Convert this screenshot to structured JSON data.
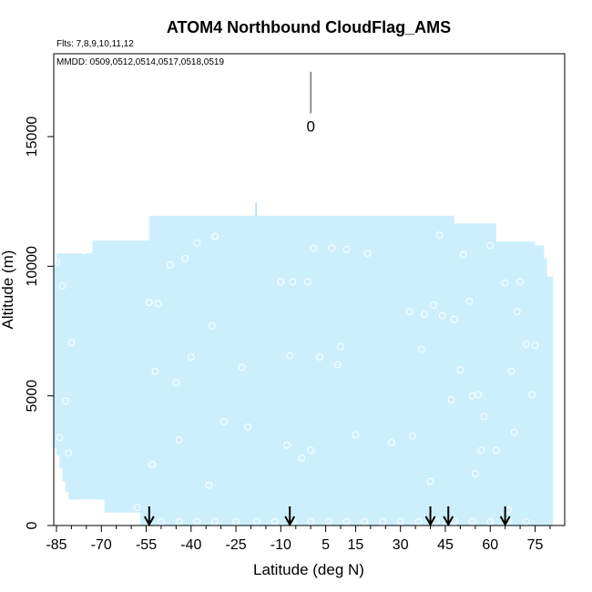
{
  "chart_data": {
    "type": "area",
    "title": "ATOM4 Northbound CloudFlag_AMS",
    "flights_text": "Flts: 7,8,9,10,11,12",
    "dates_text": "MMDD: 0509,0512,0514,0517,0518,0519",
    "xlabel": "Latitude (deg N)",
    "ylabel": "Altitude (m)",
    "xlim": [
      -86,
      81
    ],
    "ylim": [
      0,
      18000
    ],
    "x_ticks": [
      -85,
      -70,
      -55,
      -40,
      -25,
      -10,
      5,
      15,
      30,
      45,
      60,
      75
    ],
    "x_tick_labels": [
      "-85",
      "-70",
      "-55",
      "-40",
      "-25",
      "-10",
      "5",
      "15",
      "30",
      "45",
      "60",
      "75"
    ],
    "x_minor_ticks": [
      -80,
      -75,
      -65,
      -60,
      -50,
      -45,
      -35,
      -30,
      -20,
      -15,
      -5,
      0,
      10,
      20,
      25,
      35,
      40,
      50,
      55,
      65,
      70,
      80
    ],
    "y_ticks": [
      0,
      5000,
      10000,
      15000
    ],
    "y_tick_labels": [
      "0",
      "5000",
      "10000",
      "15000"
    ],
    "coverage_color": "#cdeffd",
    "point_color": "#ffffff",
    "coverage": [
      {
        "x": -86,
        "top": 10100
      },
      {
        "x": -85,
        "top": 10500
      },
      {
        "x": -73,
        "top": 11000
      },
      {
        "x": -56,
        "top": 11000
      },
      {
        "x": -54,
        "top": 11950
      },
      {
        "x": -37,
        "top": 11950
      },
      {
        "x": -19,
        "top": 11950
      },
      {
        "x": 5,
        "top": 11950
      },
      {
        "x": 23,
        "top": 11950
      },
      {
        "x": 47,
        "top": 11950
      },
      {
        "x": 48,
        "top": 11650
      },
      {
        "x": 61,
        "top": 11650
      },
      {
        "x": 62,
        "top": 10950
      },
      {
        "x": 74,
        "top": 10950
      },
      {
        "x": 75,
        "top": 10800
      },
      {
        "x": 78,
        "top": 10300
      },
      {
        "x": 79,
        "top": 9600
      },
      {
        "x": 81,
        "top": 9600
      }
    ],
    "bottom": [
      {
        "x": -86,
        "bottom": 3000
      },
      {
        "x": -85,
        "bottom": 2700
      },
      {
        "x": -84,
        "bottom": 2200
      },
      {
        "x": -83,
        "bottom": 1700
      },
      {
        "x": -82,
        "bottom": 1300
      },
      {
        "x": -81,
        "bottom": 1000
      },
      {
        "x": -69,
        "bottom": 500
      },
      {
        "x": -57,
        "bottom": 0
      },
      {
        "x": 81,
        "bottom": 0
      }
    ],
    "points": [
      [
        -85,
        10150
      ],
      [
        -84,
        3400
      ],
      [
        -83,
        9250
      ],
      [
        -82,
        4800
      ],
      [
        -81,
        2800
      ],
      [
        -80,
        7050
      ],
      [
        -76,
        10600
      ],
      [
        -58,
        700
      ],
      [
        -54,
        8600
      ],
      [
        -53,
        2350
      ],
      [
        -52,
        5950
      ],
      [
        -51,
        8550
      ],
      [
        -47,
        10050
      ],
      [
        -45,
        5500
      ],
      [
        -44,
        3300
      ],
      [
        -42,
        10300
      ],
      [
        -40,
        6500
      ],
      [
        -38,
        10900
      ],
      [
        -34,
        1550
      ],
      [
        -33,
        7700
      ],
      [
        -32,
        11150
      ],
      [
        -29,
        4000
      ],
      [
        -23,
        6100
      ],
      [
        -21,
        3800
      ],
      [
        -10,
        9400
      ],
      [
        -8,
        3100
      ],
      [
        -7,
        6550
      ],
      [
        -6,
        9400
      ],
      [
        -3,
        2600
      ],
      [
        -1,
        9400
      ],
      [
        0,
        2900
      ],
      [
        1,
        10700
      ],
      [
        3,
        6500
      ],
      [
        7,
        10700
      ],
      [
        9,
        6200
      ],
      [
        10,
        6900
      ],
      [
        12,
        10650
      ],
      [
        15,
        3500
      ],
      [
        19,
        10500
      ],
      [
        27,
        3200
      ],
      [
        33,
        8250
      ],
      [
        34,
        3450
      ],
      [
        37,
        6800
      ],
      [
        38,
        8150
      ],
      [
        40,
        1700
      ],
      [
        41,
        8500
      ],
      [
        43,
        11200
      ],
      [
        44,
        8100
      ],
      [
        48,
        7950
      ],
      [
        51,
        10450
      ],
      [
        53,
        8650
      ],
      [
        54,
        5000
      ],
      [
        56,
        5050
      ],
      [
        57,
        2900
      ],
      [
        58,
        4200
      ],
      [
        60,
        10800
      ],
      [
        62,
        2900
      ],
      [
        65,
        9350
      ],
      [
        67,
        5950
      ],
      [
        68,
        3600
      ],
      [
        69,
        8250
      ],
      [
        70,
        9400
      ],
      [
        74,
        5050
      ],
      [
        75,
        6950
      ],
      [
        50,
        6000
      ],
      [
        47,
        4850
      ],
      [
        55,
        2000
      ],
      [
        66,
        600
      ],
      [
        72,
        7000
      ]
    ],
    "bottom_points": [
      -58,
      -50,
      -44,
      -38,
      -32,
      -25,
      -18,
      -12,
      -6,
      0,
      6,
      12,
      18,
      24,
      30,
      36,
      42,
      48,
      54,
      60,
      66,
      72
    ],
    "arrows": [
      -54,
      -7,
      40,
      46,
      65
    ],
    "annotation": {
      "x": 0,
      "label": "0",
      "line_top": 17500,
      "line_bottom": 15900
    }
  }
}
